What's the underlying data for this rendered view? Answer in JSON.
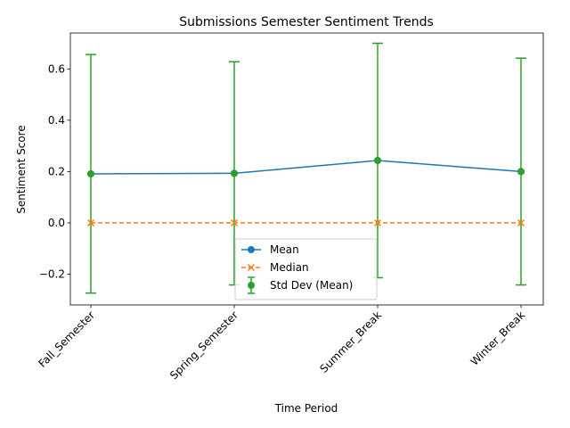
{
  "chart_data": {
    "type": "line",
    "title": "Submissions Semester Sentiment Trends",
    "xlabel": "Time Period",
    "ylabel": "Sentiment Score",
    "categories": [
      "Fall_Semester",
      "Spring_Semester",
      "Summer_Break",
      "Winter_Break"
    ],
    "ylim": [
      -0.32,
      0.74
    ],
    "yticks": [
      -0.2,
      0.0,
      0.2,
      0.4,
      0.6
    ],
    "ytick_labels": [
      "−0.2",
      "0.0",
      "0.2",
      "0.4",
      "0.6"
    ],
    "grid": false,
    "legend_position": "lower center",
    "series": [
      {
        "name": "Mean",
        "values": [
          0.191,
          0.193,
          0.243,
          0.2
        ],
        "color": "#1f77b4",
        "marker": "circle",
        "linestyle": "solid"
      },
      {
        "name": "Median",
        "values": [
          0.0,
          0.0,
          0.0,
          0.0
        ],
        "color": "#ff7f0e",
        "marker": "x",
        "linestyle": "dashed"
      },
      {
        "name": "Std Dev (Mean)",
        "values": [
          0.191,
          0.193,
          0.243,
          0.2
        ],
        "error": [
          0.465,
          0.435,
          0.457,
          0.442
        ],
        "color": "#2ca02c",
        "marker": "circle",
        "linestyle": "none",
        "type": "errorbar"
      }
    ]
  }
}
